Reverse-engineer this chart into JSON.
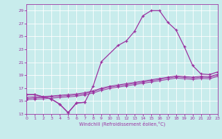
{
  "xlabel": "Windchill (Refroidissement éolien,°C)",
  "xlim": [
    0,
    23
  ],
  "ylim": [
    13,
    30
  ],
  "yticks": [
    13,
    15,
    17,
    19,
    21,
    23,
    25,
    27,
    29
  ],
  "xticks": [
    0,
    1,
    2,
    3,
    4,
    5,
    6,
    7,
    8,
    9,
    10,
    11,
    12,
    13,
    14,
    15,
    16,
    17,
    18,
    19,
    20,
    21,
    22,
    23
  ],
  "bg_color": "#c8ecec",
  "line_color": "#9b30a0",
  "grid_color": "#ffffff",
  "wc_x": [
    0,
    1,
    3,
    4,
    5,
    6,
    7,
    8,
    9,
    11,
    12,
    13,
    14,
    15,
    16,
    17,
    18,
    19,
    20,
    21,
    22,
    23
  ],
  "wc_y": [
    16.0,
    16.0,
    15.3,
    14.5,
    13.2,
    14.7,
    14.8,
    17.3,
    21.1,
    23.6,
    24.3,
    25.8,
    28.2,
    29.0,
    29.0,
    27.2,
    26.0,
    23.4,
    20.5,
    19.2,
    19.1,
    19.5
  ],
  "dip_x": [
    0,
    1,
    3,
    4,
    5,
    6,
    7
  ],
  "dip_y": [
    16.0,
    16.0,
    15.3,
    14.5,
    13.2,
    14.7,
    14.8
  ],
  "l1_x": [
    0,
    1,
    2,
    3,
    4,
    5,
    6,
    7,
    8,
    9,
    10,
    11,
    12,
    13,
    14,
    15,
    16,
    17,
    18,
    19,
    20,
    21,
    22,
    23
  ],
  "l1_y": [
    15.6,
    15.65,
    15.7,
    15.8,
    15.9,
    16.0,
    16.1,
    16.3,
    16.6,
    17.0,
    17.3,
    17.5,
    17.7,
    17.9,
    18.1,
    18.3,
    18.5,
    18.7,
    18.9,
    18.8,
    18.7,
    18.85,
    18.8,
    19.15
  ],
  "l2_y": [
    15.4,
    15.5,
    15.55,
    15.65,
    15.75,
    15.85,
    15.95,
    16.15,
    16.45,
    16.85,
    17.15,
    17.35,
    17.55,
    17.75,
    17.95,
    18.15,
    18.35,
    18.55,
    18.75,
    18.65,
    18.55,
    18.7,
    18.65,
    19.0
  ],
  "l3_y": [
    15.2,
    15.3,
    15.35,
    15.45,
    15.55,
    15.65,
    15.75,
    15.95,
    16.25,
    16.65,
    16.95,
    17.15,
    17.35,
    17.55,
    17.75,
    17.95,
    18.15,
    18.35,
    18.55,
    18.45,
    18.35,
    18.5,
    18.45,
    18.8
  ]
}
